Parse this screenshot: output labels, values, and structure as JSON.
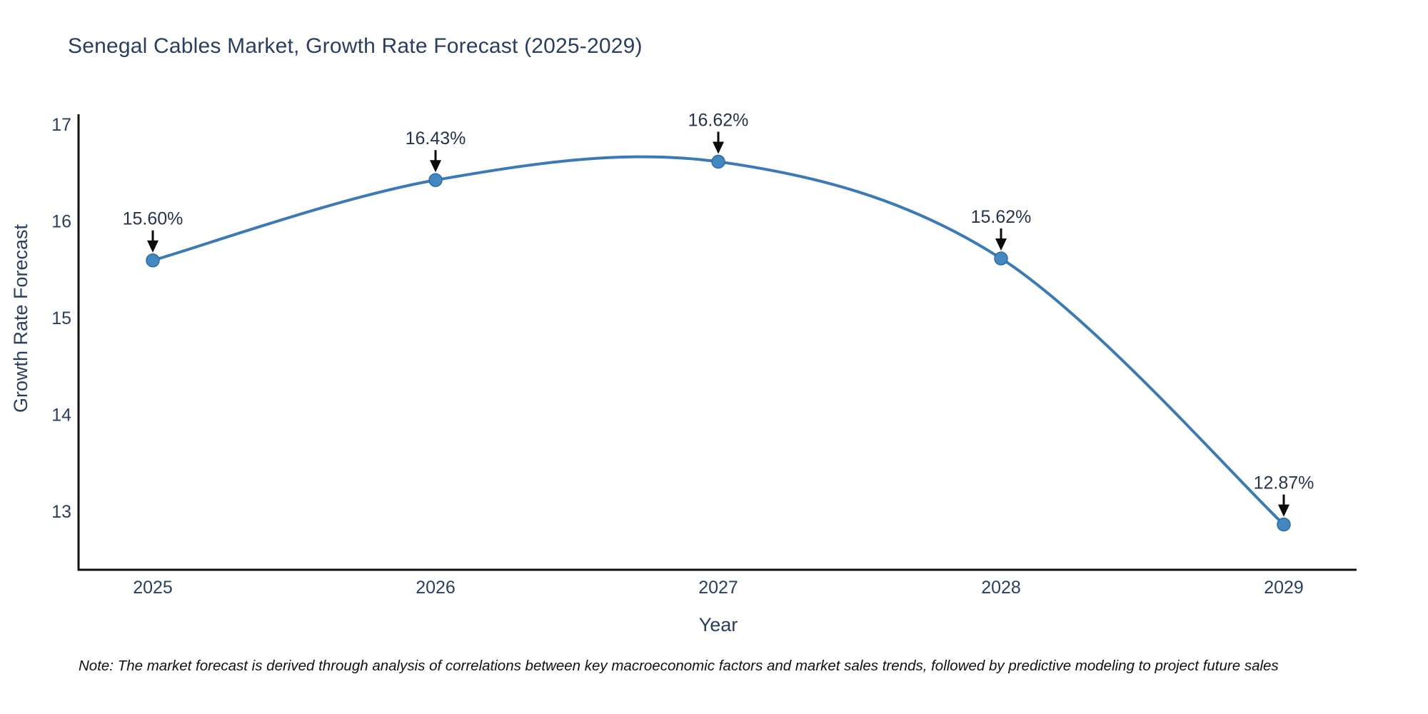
{
  "title": "Senegal Cables Market, Growth Rate Forecast (2025-2029)",
  "note": "Note: The market forecast is derived through analysis of correlations between key macroeconomic factors and market sales trends, followed by predictive modeling to project future sales",
  "chart_data": {
    "type": "line",
    "title": "Senegal Cables Market, Growth Rate Forecast (2025-2029)",
    "x": [
      "2025",
      "2026",
      "2027",
      "2028",
      "2029"
    ],
    "values": [
      15.6,
      16.43,
      16.62,
      15.62,
      12.87
    ],
    "point_labels": [
      "15.60%",
      "16.43%",
      "16.62%",
      "15.62%",
      "12.87%"
    ],
    "xlabel": "Year",
    "ylabel": "Growth Rate Forecast",
    "yticks": [
      13,
      14,
      15,
      16,
      17
    ],
    "ylim": [
      12.4,
      17.1
    ],
    "line_shape": "spline",
    "grid": false,
    "legend": "none",
    "annotations_style": "value label above each point with downward arrow"
  },
  "colors": {
    "background": "#ffffff",
    "title_text": "#2a3f5f",
    "axis_text": "#2a3f5f",
    "axis_line": "#111111",
    "line": "#3c7ab5",
    "marker_fill": "#4287c0",
    "marker_edge": "#2f6ba3",
    "annotation_text": "#26334a",
    "arrow": "#0b0b0b",
    "note_text": "#111111"
  }
}
